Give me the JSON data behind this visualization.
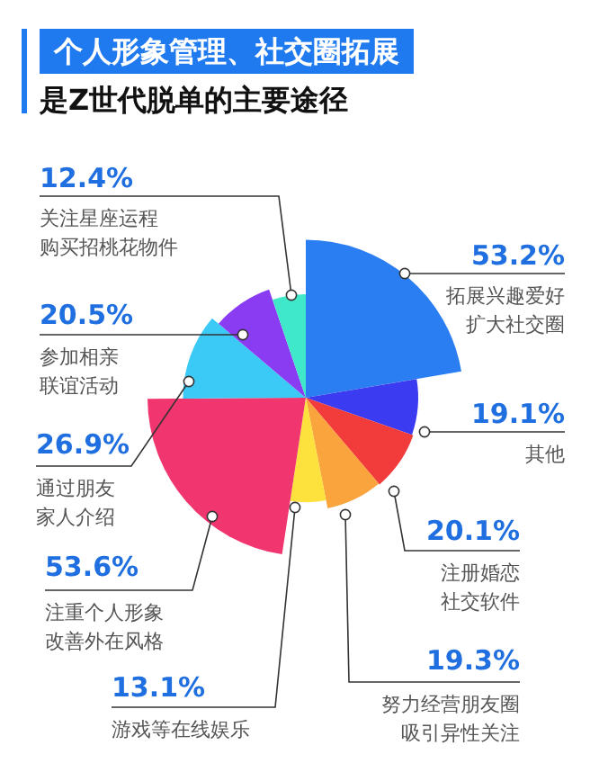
{
  "chart_data": {
    "type": "other",
    "title": "个人形象管理、社交圈拓展",
    "subtitle": "是Z世代脱单的主要途径",
    "categories": [
      "拓展兴趣爱好扩大社交圈",
      "其他",
      "注册婚恋社交软件",
      "努力经营朋友圈吸引异性关注",
      "游戏等在线娱乐",
      "注重个人形象改善外在风格",
      "通过朋友家人介绍",
      "参加相亲联谊活动",
      "关注星座运程购买招桃花物件"
    ],
    "values": [
      53.2,
      19.1,
      20.1,
      19.3,
      13.1,
      53.6,
      26.9,
      20.5,
      12.4
    ],
    "value_labels": [
      "53.2%",
      "19.1%",
      "20.1%",
      "19.3%",
      "13.1%",
      "53.6%",
      "26.9%",
      "20.5%",
      "12.4%"
    ],
    "colors": [
      "#2a7ef2",
      "#3b3bf2",
      "#f23c3c",
      "#f9a43c",
      "#fde23e",
      "#f1356f",
      "#3bcaf6",
      "#8a3cf2",
      "#3fe8c8"
    ]
  }
}
